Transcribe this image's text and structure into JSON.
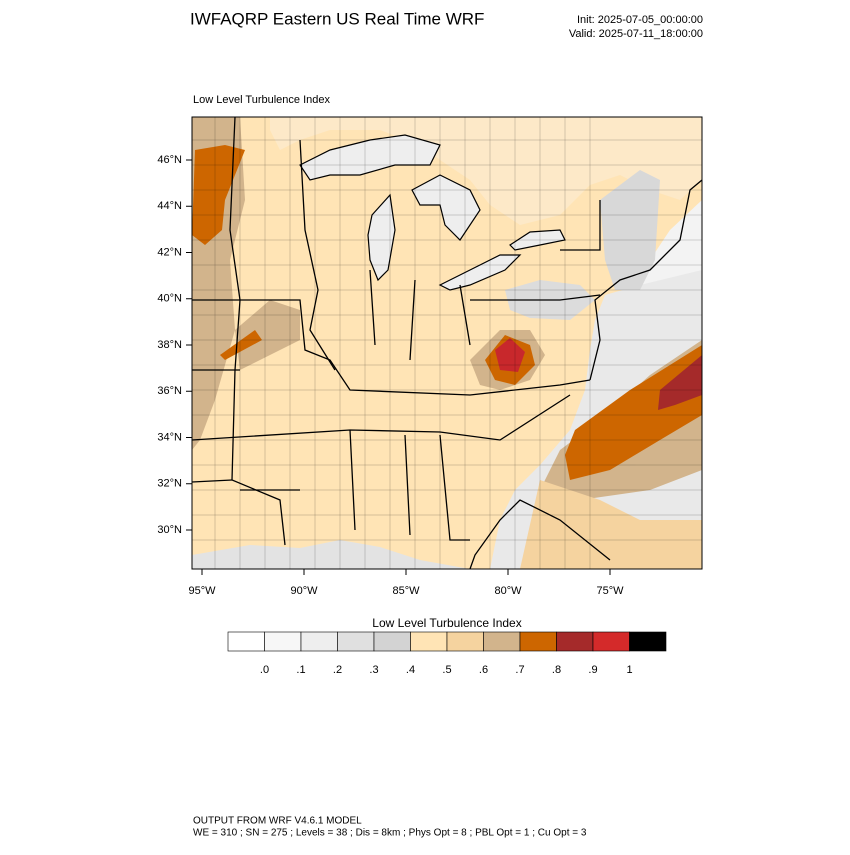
{
  "header": {
    "title": "IWFAQRP Eastern US Real Time WRF",
    "init": "Init: 2025-07-05_00:00:00",
    "valid": "Valid: 2025-07-11_18:00:00"
  },
  "map": {
    "subtitle": "Low Level Turbulence Index",
    "lat_labels": [
      "46°N",
      "44°N",
      "42°N",
      "40°N",
      "38°N",
      "36°N",
      "34°N",
      "32°N",
      "30°N"
    ],
    "lon_labels": [
      "95°W",
      "90°W",
      "85°W",
      "80°W",
      "75°W"
    ]
  },
  "colorbar": {
    "title": "Low Level Turbulence Index",
    "colors": [
      "#ffffff",
      "#f7f7f7",
      "#eeeeee",
      "#e0e0e0",
      "#d3d3d3",
      "#ffe4b5",
      "#f5d39f",
      "#d2b48c",
      "#cd6600",
      "#a52a2a",
      "#d42a2a",
      "#000000"
    ],
    "labels": [
      ".0",
      ".1",
      ".2",
      ".3",
      ".4",
      ".5",
      ".6",
      ".7",
      ".8",
      ".9",
      "1"
    ]
  },
  "footer": {
    "line1": "OUTPUT FROM WRF V4.6.1 MODEL",
    "line2": "WE = 310 ; SN = 275 ; Levels = 38 ; Dis = 8km ; Phys Opt = 8 ; PBL Opt = 1 ; Cu Opt = 3"
  }
}
